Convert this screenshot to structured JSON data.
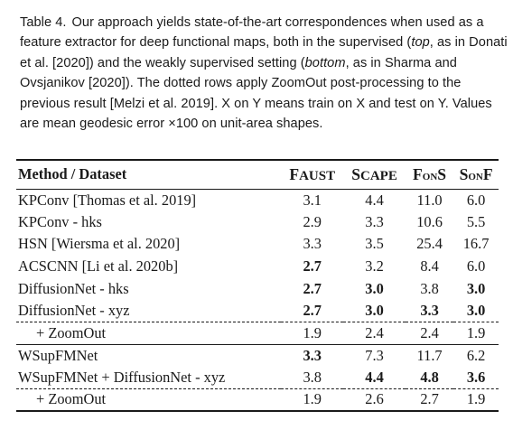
{
  "caption": {
    "label": "Table 4.",
    "part1": "Our approach yields state-of-the-art correspondences when used as a feature extractor for deep functional maps, both in the supervised (",
    "italic1": "top",
    "part2": ", as in Donati et al. [2020]) and the weakly supervised setting (",
    "italic2": "bottom",
    "part3": ", as in Sharma and Ovsjanikov [2020]). The dotted rows apply ZoomOut post-processing to the previous result [Melzi et al. 2019]. X on Y means train on X and test on Y. Values are mean geodesic error ×100 on unit-area shapes."
  },
  "table": {
    "header": {
      "method": "Method / Dataset",
      "faust_big": "F",
      "faust_small": "AUST",
      "scape_big": "S",
      "scape_small": "CAPE",
      "fons_big": "F",
      "fons_mid": "on",
      "fons_end": "S",
      "sonf_big": "S",
      "sonf_mid": "on",
      "sonf_end": "F"
    },
    "rows": [
      {
        "method": "KPConv [Thomas et al. 2019]",
        "faust": "3.1",
        "scape": "4.4",
        "fons": "11.0",
        "sonf": "6.0"
      },
      {
        "method": "KPConv - hks",
        "faust": "2.9",
        "scape": "3.3",
        "fons": "10.6",
        "sonf": "5.5"
      },
      {
        "method": "HSN [Wiersma et al. 2020]",
        "faust": "3.3",
        "scape": "3.5",
        "fons": "25.4",
        "sonf": "16.7"
      },
      {
        "method": "ACSCNN [Li et al. 2020b]",
        "faust": "2.7",
        "scape": "3.2",
        "fons": "8.4",
        "sonf": "6.0"
      },
      {
        "method": "DiffusionNet - hks",
        "faust": "2.7",
        "scape": "3.0",
        "fons": "3.8",
        "sonf": "3.0"
      },
      {
        "method": "DiffusionNet - xyz",
        "faust": "2.7",
        "scape": "3.0",
        "fons": "3.3",
        "sonf": "3.0"
      },
      {
        "method": "+ ZoomOut",
        "faust": "1.9",
        "scape": "2.4",
        "fons": "2.4",
        "sonf": "1.9"
      },
      {
        "method": "WSupFMNet",
        "faust": "3.3",
        "scape": "7.3",
        "fons": "11.7",
        "sonf": "6.2"
      },
      {
        "method": "WSupFMNet + DiffusionNet - xyz",
        "faust": "3.8",
        "scape": "4.4",
        "fons": "4.8",
        "sonf": "3.6"
      },
      {
        "method": "+ ZoomOut",
        "faust": "1.9",
        "scape": "2.6",
        "fons": "2.7",
        "sonf": "1.9"
      }
    ]
  }
}
